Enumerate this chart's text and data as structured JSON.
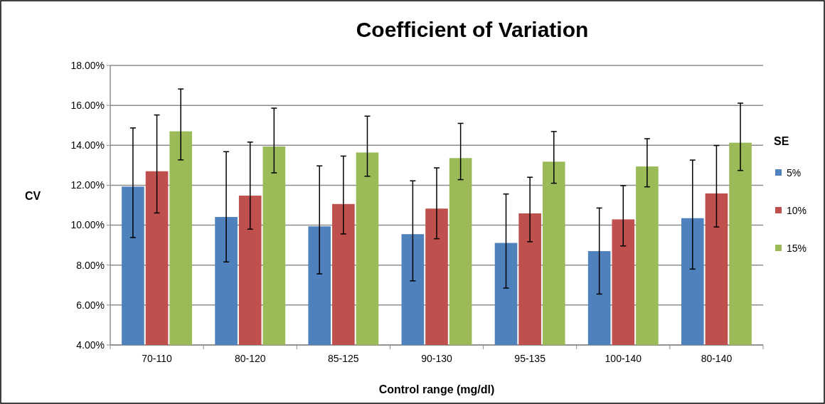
{
  "chart_data": {
    "type": "bar",
    "title": "Coefficient of Variation",
    "xlabel": "Control range (mg/dl)",
    "ylabel": "CV",
    "legend_title": "SE",
    "categories": [
      "70-110",
      "80-120",
      "85-125",
      "90-130",
      "95-135",
      "100-140",
      "80-140"
    ],
    "series": [
      {
        "name": "5%",
        "color": "#4f81bd",
        "values": [
          11.93,
          10.41,
          9.94,
          9.55,
          9.11,
          8.7,
          10.35
        ],
        "errors": [
          [
            9.38,
            14.87
          ],
          [
            8.16,
            13.68
          ],
          [
            7.56,
            12.97
          ],
          [
            7.21,
            12.22
          ],
          [
            6.85,
            11.56
          ],
          [
            6.55,
            10.86
          ],
          [
            7.8,
            13.26
          ]
        ]
      },
      {
        "name": "10%",
        "color": "#c0504d",
        "values": [
          12.7,
          11.48,
          11.06,
          10.83,
          10.59,
          10.29,
          11.59
        ],
        "errors": [
          [
            10.61,
            15.52
          ],
          [
            9.8,
            14.16
          ],
          [
            9.56,
            13.46
          ],
          [
            9.32,
            12.87
          ],
          [
            9.17,
            12.4
          ],
          [
            8.96,
            11.98
          ],
          [
            9.91,
            13.99
          ]
        ]
      },
      {
        "name": "15%",
        "color": "#9bbb59",
        "values": [
          14.7,
          13.94,
          13.64,
          13.36,
          13.18,
          12.94,
          14.13
        ],
        "errors": [
          [
            13.27,
            16.82
          ],
          [
            12.62,
            15.86
          ],
          [
            12.45,
            15.46
          ],
          [
            12.28,
            15.1
          ],
          [
            12.1,
            14.69
          ],
          [
            11.92,
            14.33
          ],
          [
            12.74,
            16.11
          ]
        ]
      }
    ],
    "ylim": [
      4,
      18
    ],
    "yticks": [
      {
        "value": 4,
        "label": "4.00%"
      },
      {
        "value": 6,
        "label": "6.00%"
      },
      {
        "value": 8,
        "label": "8.00%"
      },
      {
        "value": 10,
        "label": "10.00%"
      },
      {
        "value": 12,
        "label": "12.00%"
      },
      {
        "value": 14,
        "label": "14.00%"
      },
      {
        "value": 16,
        "label": "16.00%"
      },
      {
        "value": 18,
        "label": "18.00%"
      }
    ],
    "grid": "y",
    "legend": "right"
  }
}
